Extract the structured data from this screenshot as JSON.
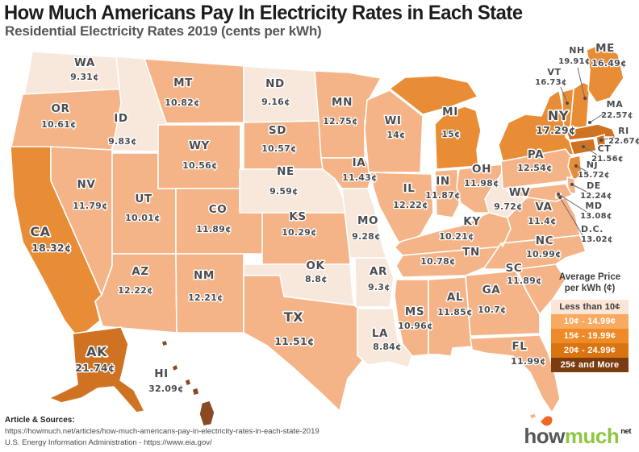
{
  "header": {
    "title": "How Much Americans Pay In Electricity Rates in Each State",
    "subtitle": "Residential Electricity Rates 2019 (cents per kWh)"
  },
  "legend": {
    "title_line1": "Average Price",
    "title_line2": "per kWh (¢)",
    "bands": [
      {
        "label": "Less than 10¢",
        "color": "#fbe5d6",
        "text_color": "#3a3a3a"
      },
      {
        "label": "10¢ - 14.99¢",
        "color": "#f7aa60",
        "text_color": "#ffffff"
      },
      {
        "label": "15¢ - 19.99¢",
        "color": "#ee8b28",
        "text_color": "#ffffff"
      },
      {
        "label": "20¢ - 24.99¢",
        "color": "#da7410",
        "text_color": "#ffffff"
      },
      {
        "label": "25¢ and More",
        "color": "#7b3c10",
        "text_color": "#ffffff"
      }
    ]
  },
  "footer": {
    "heading": "Article & Sources:",
    "source_line1": "https://howmuch.net/articles/how-much-americans-pay-in-electricity-rates-in-each-state-2019",
    "source_line2": "U.S. Energy Information Administration - https://www.eia.gov/"
  },
  "logo": {
    "word1": "how",
    "word2": "much",
    "tld": "net"
  },
  "chart_data": {
    "type": "choropleth",
    "title": "How Much Americans Pay In Electricity Rates in Each State",
    "subtitle": "Residential Electricity Rates 2019 (cents per kWh)",
    "unit": "cents per kWh",
    "band_labels": [
      "Less than 10¢",
      "10¢ - 14.99¢",
      "15¢ - 19.99¢",
      "20¢ - 24.99¢",
      "25¢ and More"
    ],
    "map_colors": [
      "#f8e8dc",
      "#f5b487",
      "#e88d36",
      "#cf7322",
      "#8a4a21"
    ],
    "states": [
      {
        "abbr": "WA",
        "label": "9.31¢",
        "cents": 9.31,
        "band": 0
      },
      {
        "abbr": "OR",
        "label": "10.61¢",
        "cents": 10.61,
        "band": 1
      },
      {
        "abbr": "CA",
        "label": "18.32¢",
        "cents": 18.32,
        "band": 2
      },
      {
        "abbr": "ID",
        "label": "9.83¢",
        "cents": 9.83,
        "band": 0
      },
      {
        "abbr": "NV",
        "label": "11.79¢",
        "cents": 11.79,
        "band": 1
      },
      {
        "abbr": "UT",
        "label": "10.01¢",
        "cents": 10.01,
        "band": 1
      },
      {
        "abbr": "AZ",
        "label": "12.22¢",
        "cents": 12.22,
        "band": 1
      },
      {
        "abbr": "MT",
        "label": "10.82¢",
        "cents": 10.82,
        "band": 1
      },
      {
        "abbr": "WY",
        "label": "10.56¢",
        "cents": 10.56,
        "band": 1
      },
      {
        "abbr": "CO",
        "label": "11.89¢",
        "cents": 11.89,
        "band": 1
      },
      {
        "abbr": "NM",
        "label": "12.21¢",
        "cents": 12.21,
        "band": 1
      },
      {
        "abbr": "ND",
        "label": "9.16¢",
        "cents": 9.16,
        "band": 0
      },
      {
        "abbr": "SD",
        "label": "10.57¢",
        "cents": 10.57,
        "band": 1
      },
      {
        "abbr": "NE",
        "label": "9.59¢",
        "cents": 9.59,
        "band": 0
      },
      {
        "abbr": "KS",
        "label": "10.29¢",
        "cents": 10.29,
        "band": 1
      },
      {
        "abbr": "OK",
        "label": "8.8¢",
        "cents": 8.8,
        "band": 0
      },
      {
        "abbr": "TX",
        "label": "11.51¢",
        "cents": 11.51,
        "band": 1
      },
      {
        "abbr": "MN",
        "label": "12.75¢",
        "cents": 12.75,
        "band": 1
      },
      {
        "abbr": "IA",
        "label": "11.43¢",
        "cents": 11.43,
        "band": 1
      },
      {
        "abbr": "MO",
        "label": "9.28¢",
        "cents": 9.28,
        "band": 0
      },
      {
        "abbr": "AR",
        "label": "9.3¢",
        "cents": 9.3,
        "band": 0
      },
      {
        "abbr": "LA",
        "label": "8.84¢",
        "cents": 8.84,
        "band": 0
      },
      {
        "abbr": "WI",
        "label": "14¢",
        "cents": 14,
        "band": 1
      },
      {
        "abbr": "IL",
        "label": "12.22¢",
        "cents": 12.22,
        "band": 1
      },
      {
        "abbr": "MS",
        "label": "10.96¢",
        "cents": 10.96,
        "band": 1
      },
      {
        "abbr": "MI",
        "label": "15¢",
        "cents": 15,
        "band": 2
      },
      {
        "abbr": "IN",
        "label": "11.87¢",
        "cents": 11.87,
        "band": 1
      },
      {
        "abbr": "KY",
        "label": "10.21¢",
        "cents": 10.21,
        "band": 1
      },
      {
        "abbr": "TN",
        "label": "10.78¢",
        "cents": 10.78,
        "band": 1
      },
      {
        "abbr": "AL",
        "label": "11.85¢",
        "cents": 11.85,
        "band": 1
      },
      {
        "abbr": "OH",
        "label": "11.98¢",
        "cents": 11.98,
        "band": 1
      },
      {
        "abbr": "WV",
        "label": "9.72¢",
        "cents": 9.72,
        "band": 0
      },
      {
        "abbr": "GA",
        "label": "10.7¢",
        "cents": 10.7,
        "band": 1
      },
      {
        "abbr": "FL",
        "label": "11.99¢",
        "cents": 11.99,
        "band": 1
      },
      {
        "abbr": "SC",
        "label": "11.89¢",
        "cents": 11.89,
        "band": 1
      },
      {
        "abbr": "NC",
        "label": "10.99¢",
        "cents": 10.99,
        "band": 1
      },
      {
        "abbr": "VA",
        "label": "11.4¢",
        "cents": 11.4,
        "band": 1
      },
      {
        "abbr": "PA",
        "label": "12.54¢",
        "cents": 12.54,
        "band": 1
      },
      {
        "abbr": "NY",
        "label": "17.29¢",
        "cents": 17.29,
        "band": 2
      },
      {
        "abbr": "NJ",
        "label": "15.72¢",
        "cents": 15.72,
        "band": 2
      },
      {
        "abbr": "DE",
        "label": "12.24¢",
        "cents": 12.24,
        "band": 1
      },
      {
        "abbr": "MD",
        "label": "13.08¢",
        "cents": 13.08,
        "band": 1
      },
      {
        "abbr": "DC",
        "display": "D.C.",
        "label": "13.02¢",
        "cents": 13.02,
        "band": 1
      },
      {
        "abbr": "VT",
        "label": "16.73¢",
        "cents": 16.73,
        "band": 2
      },
      {
        "abbr": "NH",
        "label": "19.91¢",
        "cents": 19.91,
        "band": 2
      },
      {
        "abbr": "MA",
        "label": "22.57¢",
        "cents": 22.57,
        "band": 3
      },
      {
        "abbr": "RI",
        "label": "22.67¢",
        "cents": 22.67,
        "band": 3
      },
      {
        "abbr": "CT",
        "label": "21.56¢",
        "cents": 21.56,
        "band": 3
      },
      {
        "abbr": "ME",
        "label": "16.49¢",
        "cents": 16.49,
        "band": 2
      },
      {
        "abbr": "AK",
        "label": "21.74¢",
        "cents": 21.74,
        "band": 3
      },
      {
        "abbr": "HI",
        "label": "32.09¢",
        "cents": 32.09,
        "band": 4
      }
    ]
  }
}
